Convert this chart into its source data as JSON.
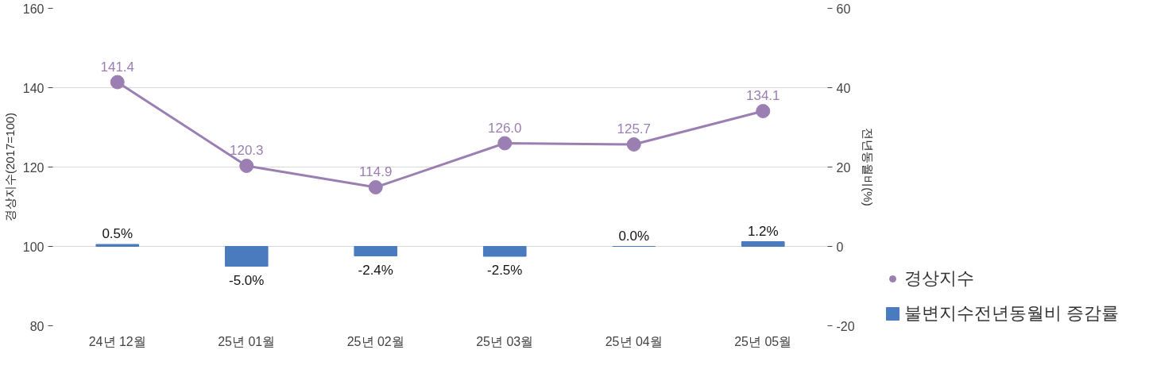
{
  "chart_data": {
    "type": "line",
    "categories": [
      "24년 12월",
      "25년 01월",
      "25년 02월",
      "25년 03월",
      "25년 04월",
      "25년 05월"
    ],
    "series": [
      {
        "name": "경상지수",
        "color": "#9b7fb3",
        "marker": "circle",
        "values": [
          141.4,
          120.3,
          114.9,
          126.0,
          125.7,
          134.1
        ],
        "value_labels": [
          "141.4",
          "120.3",
          "114.9",
          "126.0",
          "125.7",
          "134.1"
        ]
      },
      {
        "name": "불변지수전년동월비 증감률",
        "type": "bar",
        "axis": "y2",
        "color": "#4a7bbf",
        "values": [
          0.5,
          -5.0,
          -2.4,
          -2.5,
          0.0,
          1.2
        ],
        "value_labels": [
          "0.5%",
          "-5.0%",
          "-2.4%",
          "-2.5%",
          "0.0%",
          "1.2%"
        ]
      }
    ],
    "ylabel": "경상지수(2017=100)",
    "y2label": "전년동월비(%)",
    "ylim": [
      80,
      160
    ],
    "yticks": [
      80,
      100,
      120,
      140,
      160
    ],
    "y2lim": [
      -20,
      60
    ],
    "y2ticks": [
      -20,
      0,
      20,
      40,
      60
    ],
    "grid": "y",
    "legend": "right",
    "data_labels": true
  }
}
